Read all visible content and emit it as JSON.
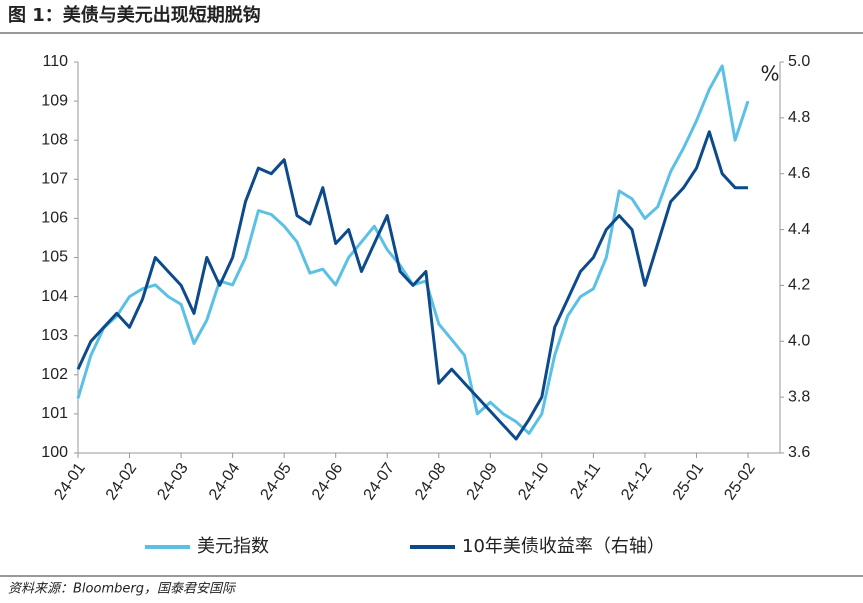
{
  "chart_data": {
    "type": "line",
    "title": "图 1：美债与美元出现短期脱钩",
    "source": "资料来源：Bloomberg，国泰君安国际",
    "y2label": "%",
    "categories": [
      "24-01",
      null,
      null,
      null,
      "24-02",
      null,
      null,
      null,
      "24-03",
      null,
      null,
      null,
      "24-04",
      null,
      null,
      null,
      "24-05",
      null,
      null,
      null,
      "24-06",
      null,
      null,
      null,
      "24-07",
      null,
      null,
      null,
      "24-08",
      null,
      null,
      null,
      "24-09",
      null,
      null,
      null,
      "24-10",
      null,
      null,
      null,
      "24-11",
      null,
      null,
      null,
      "24-12",
      null,
      null,
      null,
      "25-01",
      null,
      null,
      null,
      "25-02"
    ],
    "series": [
      {
        "name": "美元指数",
        "color": "#5bc0e6",
        "values": [
          101.4,
          102.5,
          103.2,
          103.5,
          104.0,
          104.2,
          104.3,
          104.0,
          103.8,
          102.8,
          103.4,
          104.4,
          104.3,
          105.0,
          106.2,
          106.1,
          105.8,
          105.4,
          104.6,
          104.7,
          104.3,
          105.0,
          105.4,
          105.8,
          105.2,
          104.8,
          104.3,
          104.4,
          103.3,
          102.9,
          102.5,
          101.0,
          101.3,
          101.0,
          100.8,
          100.5,
          101.0,
          102.5,
          103.5,
          104.0,
          104.2,
          105.0,
          106.7,
          106.5,
          106.0,
          106.3,
          107.2,
          107.8,
          108.5,
          109.3,
          109.9,
          108.0,
          109.0
        ]
      },
      {
        "name": "10年美债收益率（右轴）",
        "color": "#0d4a8c",
        "axis": "y2",
        "values": [
          3.9,
          4.0,
          4.05,
          4.1,
          4.05,
          4.15,
          4.3,
          4.25,
          4.2,
          4.1,
          4.3,
          4.2,
          4.3,
          4.5,
          4.62,
          4.6,
          4.65,
          4.45,
          4.42,
          4.55,
          4.35,
          4.4,
          4.25,
          4.35,
          4.45,
          4.25,
          4.2,
          4.25,
          3.85,
          3.9,
          3.85,
          3.8,
          3.75,
          3.7,
          3.65,
          3.72,
          3.8,
          4.05,
          4.15,
          4.25,
          4.3,
          4.4,
          4.45,
          4.4,
          4.2,
          4.35,
          4.5,
          4.55,
          4.62,
          4.75,
          4.6,
          4.55,
          4.55
        ]
      }
    ],
    "ylim": [
      100,
      110
    ],
    "yticks": [
      100,
      101,
      102,
      103,
      104,
      105,
      106,
      107,
      108,
      109,
      110
    ],
    "y2lim": [
      3.6,
      5.0
    ],
    "y2ticks": [
      3.6,
      3.8,
      {
        "value": 4.0,
        "label": "4.0"
      },
      4.2,
      4.4,
      4.6,
      4.8,
      {
        "value": 5.0,
        "label": "5.0"
      }
    ],
    "grid": false
  }
}
